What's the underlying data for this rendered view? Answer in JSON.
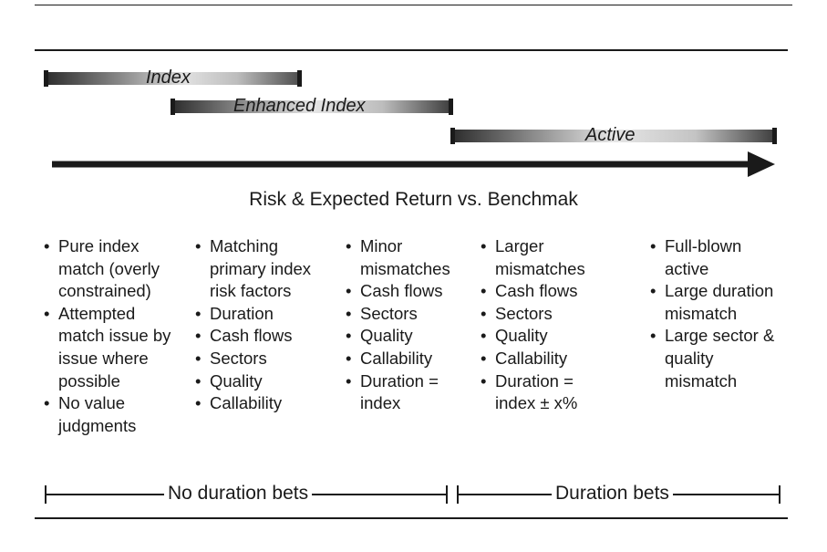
{
  "bands": [
    {
      "label": "Index"
    },
    {
      "label": "Enhanced Index"
    },
    {
      "label": "Active"
    }
  ],
  "heading": "Risk & Expected Return vs. Benchmak",
  "columns": [
    {
      "items": [
        "Pure index match (overly constrained)",
        "Attempted match issue by issue where possible",
        "No value judgments"
      ]
    },
    {
      "items": [
        "Matching primary index risk factors",
        "Duration",
        "Cash flows",
        "Sectors",
        "Quality",
        "Callability"
      ]
    },
    {
      "items": [
        "Minor mismatches",
        "Cash flows",
        "Sectors",
        "Quality",
        "Callability",
        "Duration = index"
      ]
    },
    {
      "items": [
        "Larger mismatches",
        "Cash flows",
        "Sectors",
        "Quality",
        "Callability",
        "Duration = index ± x%"
      ]
    },
    {
      "items": [
        "Full-blown active",
        "Large duration mismatch",
        "Large sector & quality mismatch"
      ]
    }
  ],
  "brackets": [
    {
      "label": "No duration bets"
    },
    {
      "label": "Duration bets"
    }
  ]
}
